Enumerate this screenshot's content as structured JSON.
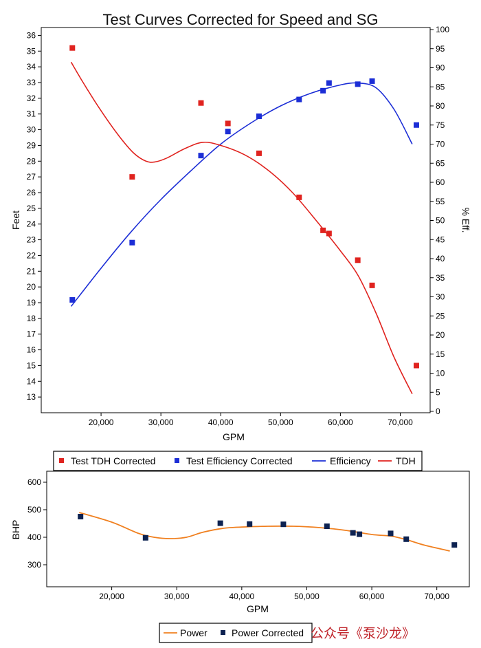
{
  "watermark": "公众号《泵沙龙》",
  "chart_data": [
    {
      "type": "line",
      "title": "Test Curves Corrected for Speed and SG",
      "xlabel": "GPM",
      "ylabel": "Feet",
      "y2label": "% Eff.",
      "xlim": [
        10000,
        75000
      ],
      "ylim": [
        12,
        36.5
      ],
      "y2lim": [
        0,
        100
      ],
      "x_ticks": [
        "20,000",
        "30,000",
        "40,000",
        "50,000",
        "60,000",
        "70,000"
      ],
      "y_ticks": [
        "13",
        "14",
        "15",
        "16",
        "17",
        "18",
        "19",
        "20",
        "21",
        "22",
        "23",
        "24",
        "25",
        "26",
        "27",
        "28",
        "29",
        "30",
        "31",
        "32",
        "33",
        "34",
        "35",
        "36"
      ],
      "y2_ticks": [
        "0",
        "5",
        "10",
        "15",
        "20",
        "25",
        "30",
        "35",
        "40",
        "45",
        "50",
        "55",
        "60",
        "65",
        "70",
        "75",
        "80",
        "85",
        "90",
        "95",
        "100"
      ],
      "grid": false,
      "legend": "bottom",
      "colors": {
        "tdh": "#e0231f",
        "efficiency": "#1c2ed6"
      },
      "series": [
        {
          "name": "Test TDH Corrected",
          "kind": "scatter",
          "axis": "left",
          "x": [
            15200,
            25200,
            36700,
            41200,
            46400,
            53100,
            57100,
            58100,
            62900,
            65300,
            72700
          ],
          "y": [
            35.2,
            27.0,
            31.7,
            30.4,
            28.5,
            25.7,
            23.6,
            23.4,
            21.7,
            20.1,
            15.0
          ]
        },
        {
          "name": "Test Efficiency Corrected",
          "kind": "scatter",
          "axis": "right",
          "x": [
            15200,
            25200,
            36700,
            41200,
            46400,
            53100,
            57100,
            58100,
            62900,
            65300,
            72700
          ],
          "y": [
            29.2,
            44.2,
            67.0,
            73.3,
            77.3,
            81.7,
            84.0,
            86.0,
            85.7,
            86.5,
            75.0
          ]
        },
        {
          "name": "Efficiency",
          "kind": "line",
          "axis": "right",
          "x": [
            15000,
            20000,
            25000,
            30000,
            35000,
            40000,
            45000,
            50000,
            55000,
            60000,
            63000,
            66000,
            69000,
            72000
          ],
          "y": [
            27.5,
            37.5,
            47.0,
            55.5,
            63.0,
            70.0,
            75.5,
            80.0,
            83.3,
            85.5,
            86.0,
            84.7,
            79.0,
            70.0
          ]
        },
        {
          "name": "TDH",
          "kind": "line",
          "axis": "left",
          "x": [
            15000,
            17000,
            20000,
            23000,
            25500,
            27500,
            29000,
            31000,
            34000,
            37000,
            40000,
            44000,
            48000,
            52000,
            56000,
            60000,
            63000,
            66000,
            69000,
            72000
          ],
          "y": [
            34.3,
            33.0,
            31.2,
            29.6,
            28.5,
            28.0,
            27.95,
            28.2,
            28.8,
            29.2,
            29.0,
            28.4,
            27.4,
            26.0,
            24.2,
            22.3,
            20.7,
            18.3,
            15.5,
            13.2
          ]
        }
      ]
    },
    {
      "type": "line",
      "xlabel": "GPM",
      "ylabel": "BHP",
      "xlim": [
        10000,
        75000
      ],
      "ylim": [
        220,
        640
      ],
      "x_ticks": [
        "20,000",
        "30,000",
        "40,000",
        "50,000",
        "60,000",
        "70,000"
      ],
      "y_ticks": [
        "300",
        "400",
        "500",
        "600"
      ],
      "grid": false,
      "legend": "bottom",
      "colors": {
        "power": "#f08020",
        "power_corrected": "#0d2251"
      },
      "series": [
        {
          "name": "Power",
          "kind": "line",
          "x": [
            15000,
            20000,
            24000,
            26500,
            29000,
            31500,
            34000,
            37000,
            40000,
            44000,
            48000,
            52000,
            56000,
            60000,
            63000,
            65500,
            68000,
            72000
          ],
          "y": [
            490,
            455,
            415,
            400,
            395,
            400,
            418,
            432,
            437,
            440,
            440,
            435,
            425,
            410,
            404,
            390,
            372,
            350
          ]
        },
        {
          "name": "Power Corrected",
          "kind": "scatter",
          "x": [
            15200,
            25200,
            36700,
            41200,
            46400,
            53100,
            57100,
            58100,
            62900,
            65300,
            72700
          ],
          "y": [
            475,
            398,
            451,
            448,
            447,
            440,
            416,
            411,
            414,
            393,
            372
          ]
        }
      ]
    }
  ]
}
